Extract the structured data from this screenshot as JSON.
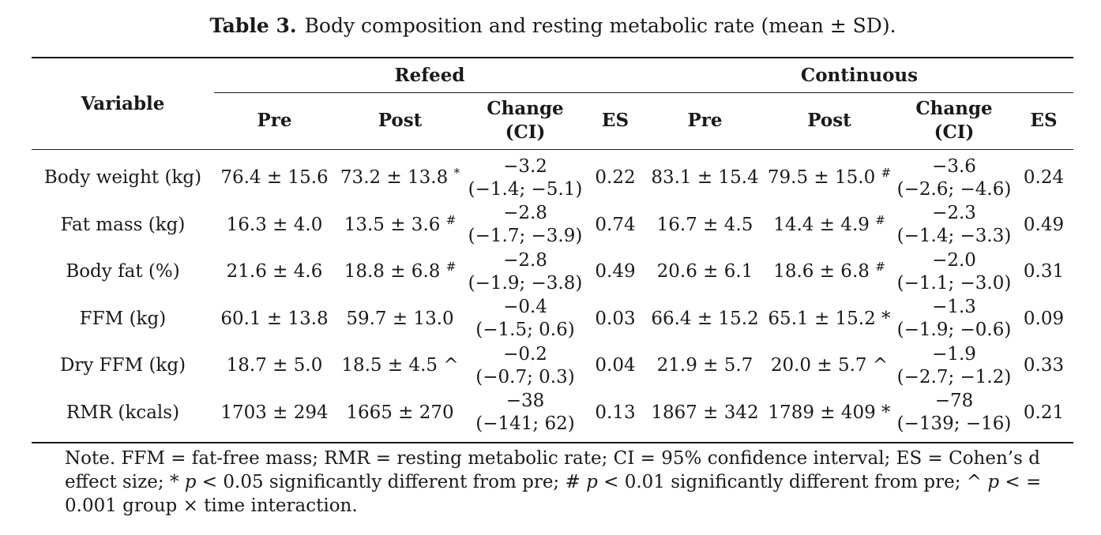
{
  "caption": {
    "label": "Table 3.",
    "text": "Body composition and resting metabolic rate (mean ± SD)."
  },
  "table": {
    "variable_header": "Variable",
    "groups": [
      "Refeed",
      "Continuous"
    ],
    "subheaders": {
      "pre": "Pre",
      "post": "Post",
      "change_line1": "Change",
      "change_line2": "(CI)",
      "es": "ES"
    },
    "rows": [
      {
        "variable": "Body weight (kg)",
        "refeed": {
          "pre": "76.4 ± 15.6",
          "post": "73.2 ± 13.8",
          "post_mark": "*",
          "change": "−3.2",
          "ci": "(−1.4; −5.1)",
          "es": "0.22"
        },
        "continuous": {
          "pre": "83.1 ± 15.4",
          "post": "79.5 ± 15.0",
          "post_mark": "#",
          "change": "−3.6",
          "ci": "(−2.6; −4.6)",
          "es": "0.24"
        }
      },
      {
        "variable": "Fat mass (kg)",
        "refeed": {
          "pre": "16.3 ± 4.0",
          "post": "13.5 ± 3.6",
          "post_mark": "#",
          "change": "−2.8",
          "ci": "(−1.7; −3.9)",
          "es": "0.74"
        },
        "continuous": {
          "pre": "16.7 ± 4.5",
          "post": "14.4 ± 4.9",
          "post_mark": "#",
          "change": "−2.3",
          "ci": "(−1.4; −3.3)",
          "es": "0.49"
        }
      },
      {
        "variable": "Body fat (%)",
        "refeed": {
          "pre": "21.6 ± 4.6",
          "post": "18.8 ± 6.8",
          "post_mark": "#",
          "change": "−2.8",
          "ci": "(−1.9; −3.8)",
          "es": "0.49"
        },
        "continuous": {
          "pre": "20.6 ± 6.1",
          "post": "18.6 ± 6.8",
          "post_mark": "#",
          "change": "−2.0",
          "ci": "(−1.1; −3.0)",
          "es": "0.31"
        }
      },
      {
        "variable": "FFM (kg)",
        "refeed": {
          "pre": "60.1 ± 13.8",
          "post": "59.7 ± 13.0",
          "post_mark": "",
          "change": "−0.4",
          "ci": "(−1.5; 0.6)",
          "es": "0.03"
        },
        "continuous": {
          "pre": "66.4 ± 15.2",
          "post": "65.1 ± 15.2 *",
          "post_mark": "",
          "change": "−1.3",
          "ci": "(−1.9; −0.6)",
          "es": "0.09"
        }
      },
      {
        "variable": "Dry FFM (kg)",
        "refeed": {
          "pre": "18.7 ± 5.0",
          "post": "18.5 ± 4.5 ^",
          "post_mark": "",
          "change": "−0.2",
          "ci": "(−0.7; 0.3)",
          "es": "0.04"
        },
        "continuous": {
          "pre": "21.9 ± 5.7",
          "post": "20.0 ± 5.7 ^",
          "post_mark": "",
          "change": "−1.9",
          "ci": "(−2.7; −1.2)",
          "es": "0.33"
        }
      },
      {
        "variable": "RMR (kcals)",
        "refeed": {
          "pre": "1703 ± 294",
          "post": "1665 ± 270",
          "post_mark": "",
          "change": "−38",
          "ci": "(−141; 62)",
          "es": "0.13"
        },
        "continuous": {
          "pre": "1867 ± 342",
          "post": "1789 ± 409 *",
          "post_mark": "",
          "change": "−78",
          "ci": "(−139; −16)",
          "es": "0.21"
        }
      }
    ]
  },
  "note": {
    "part1": "Note. FFM = fat-free mass; RMR = resting metabolic rate; CI = 95% confidence interval; ES = Cohen’s d effect size; * ",
    "p1": "p",
    "part2": " < 0.05 significantly different from pre; # ",
    "p2": "p",
    "part3": " < 0.01 significantly different from pre; ^ ",
    "p3": "p",
    "part4": " < = 0.001 group × time interaction."
  }
}
